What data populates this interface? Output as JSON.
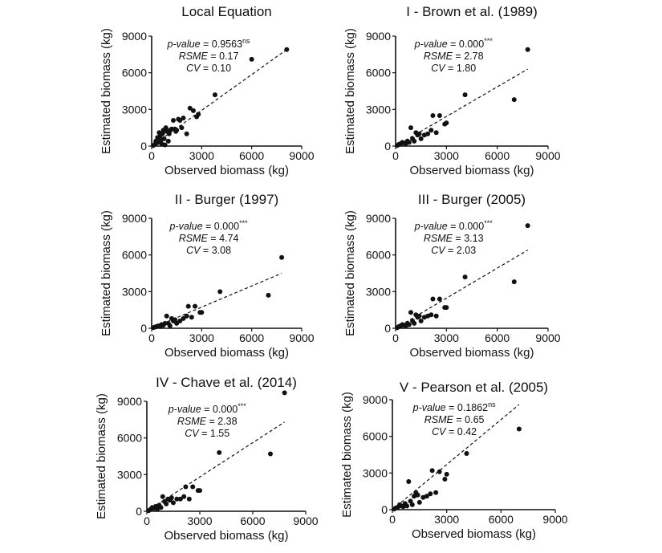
{
  "chart_data": [
    {
      "type": "scatter",
      "title": "Local Equation",
      "xlabel": "Observed biomass (kg)",
      "ylabel": "Estimated biomass (kg)",
      "xlim": [
        0,
        9000
      ],
      "ylim": [
        0,
        9000
      ],
      "xticks": [
        "0",
        "3000",
        "6000",
        "9000"
      ],
      "yticks": [
        "0",
        "3000",
        "6000",
        "9000"
      ],
      "stats": {
        "pvalue_label": "p-value",
        "pvalue": "0.9563",
        "pvalue_sig": "ns",
        "rsme_label": "RSME",
        "rsme": "0.17",
        "cv_label": "CV",
        "cv": "0.10"
      },
      "fit_line": [
        [
          0,
          0
        ],
        [
          8100,
          7900
        ]
      ],
      "x": [
        100,
        200,
        250,
        300,
        350,
        400,
        450,
        500,
        550,
        600,
        650,
        700,
        750,
        800,
        850,
        900,
        1000,
        1050,
        1100,
        1200,
        1300,
        1400,
        1450,
        1500,
        1600,
        1700,
        1800,
        1900,
        2100,
        2300,
        2500,
        2700,
        2800,
        3800,
        6000,
        8100
      ],
      "y": [
        50,
        150,
        400,
        250,
        700,
        300,
        1100,
        800,
        500,
        200,
        1000,
        1300,
        600,
        100,
        1500,
        1200,
        400,
        1000,
        1300,
        1400,
        2100,
        1400,
        1200,
        1300,
        2200,
        2100,
        1500,
        2300,
        1000,
        3100,
        2900,
        2400,
        2600,
        4200,
        7100,
        7900
      ]
    },
    {
      "type": "scatter",
      "title": "I - Brown et al. (1989)",
      "xlabel": "Observed biomass (kg)",
      "ylabel": "Estimated biomass (kg)",
      "xlim": [
        0,
        9000
      ],
      "ylim": [
        0,
        9000
      ],
      "xticks": [
        "0",
        "3000",
        "6000",
        "9000"
      ],
      "yticks": [
        "0",
        "3000",
        "6000",
        "9000"
      ],
      "stats": {
        "pvalue_label": "p-value",
        "pvalue": "0.000",
        "pvalue_sig": "***",
        "rsme_label": "RSME",
        "rsme": "2.78",
        "cv_label": "CV",
        "cv": "1.80"
      },
      "fit_line": [
        [
          0,
          0
        ],
        [
          7800,
          6300
        ]
      ],
      "x": [
        100,
        200,
        300,
        400,
        500,
        600,
        700,
        800,
        900,
        1000,
        1100,
        1200,
        1300,
        1400,
        1500,
        1700,
        1900,
        2100,
        2200,
        2400,
        2600,
        2900,
        3000,
        4100,
        7000,
        7800
      ],
      "y": [
        50,
        150,
        200,
        300,
        250,
        200,
        400,
        300,
        1500,
        600,
        400,
        1100,
        900,
        1000,
        600,
        900,
        1000,
        1300,
        2500,
        1100,
        2500,
        1800,
        1900,
        4200,
        3800,
        7900
      ]
    },
    {
      "type": "scatter",
      "title": "II - Burger (1997)",
      "xlabel": "Observed biomass (kg)",
      "ylabel": "Estimated biomass (kg)",
      "xlim": [
        0,
        9000
      ],
      "ylim": [
        0,
        9000
      ],
      "xticks": [
        "0",
        "3000",
        "6000",
        "9000"
      ],
      "yticks": [
        "0",
        "3000",
        "6000",
        "9000"
      ],
      "stats": {
        "pvalue_label": "p-value",
        "pvalue": "0.000",
        "pvalue_sig": "***",
        "rsme_label": "RSME",
        "rsme": "4.74",
        "cv_label": "CV",
        "cv": "3.08"
      },
      "fit_line": [
        [
          0,
          0
        ],
        [
          7800,
          4500
        ]
      ],
      "x": [
        100,
        200,
        300,
        400,
        500,
        600,
        700,
        800,
        900,
        1000,
        1100,
        1200,
        1300,
        1400,
        1500,
        1700,
        1900,
        2100,
        2200,
        2400,
        2600,
        2900,
        3000,
        4100,
        7000,
        7800
      ],
      "y": [
        50,
        100,
        150,
        200,
        150,
        300,
        250,
        400,
        1000,
        400,
        200,
        800,
        600,
        700,
        400,
        600,
        800,
        1000,
        1800,
        900,
        1800,
        1300,
        1300,
        3000,
        2700,
        5800
      ]
    },
    {
      "type": "scatter",
      "title": "III - Burger (2005)",
      "xlabel": "Observed biomass (kg)",
      "ylabel": "Estimated biomass (kg)",
      "xlim": [
        0,
        9000
      ],
      "ylim": [
        0,
        9000
      ],
      "xticks": [
        "0",
        "3000",
        "6000",
        "9000"
      ],
      "yticks": [
        "0",
        "3000",
        "6000",
        "9000"
      ],
      "stats": {
        "pvalue_label": "p-value",
        "pvalue": "0.000",
        "pvalue_sig": "***",
        "rsme_label": "RSME",
        "rsme": "3.13",
        "cv_label": "CV",
        "cv": "2.03"
      },
      "fit_line": [
        [
          0,
          0
        ],
        [
          7800,
          6400
        ]
      ],
      "x": [
        100,
        200,
        300,
        400,
        500,
        600,
        700,
        800,
        900,
        1000,
        1100,
        1200,
        1300,
        1400,
        1500,
        1700,
        1900,
        2100,
        2200,
        2400,
        2600,
        2900,
        3000,
        4100,
        7000,
        7800
      ],
      "y": [
        50,
        150,
        200,
        300,
        250,
        200,
        400,
        300,
        1300,
        600,
        400,
        1100,
        900,
        1000,
        600,
        900,
        1000,
        1100,
        2400,
        1000,
        2400,
        1700,
        1700,
        4200,
        3800,
        8400
      ]
    },
    {
      "type": "scatter",
      "title": "IV - Chave et al. (2014)",
      "xlabel": "Observed biomass (kg)",
      "ylabel": "Estimated biomass (kg)",
      "xlim": [
        0,
        9000
      ],
      "ylim": [
        0,
        9000
      ],
      "xticks": [
        "0",
        "3000",
        "6000",
        "9000"
      ],
      "yticks": [
        "0",
        "3000",
        "6000",
        "9000"
      ],
      "stats": {
        "pvalue_label": "p-value",
        "pvalue": "0.000",
        "pvalue_sig": "***",
        "rsme_label": "RSME",
        "rsme": "2.38",
        "cv_label": "CV",
        "cv": "1.55"
      },
      "fit_line": [
        [
          0,
          0
        ],
        [
          7800,
          7300
        ]
      ],
      "x": [
        100,
        200,
        300,
        400,
        500,
        600,
        700,
        800,
        900,
        1000,
        1100,
        1200,
        1300,
        1400,
        1500,
        1700,
        1900,
        2100,
        2200,
        2400,
        2600,
        2900,
        3000,
        4100,
        7000,
        7800
      ],
      "y": [
        50,
        150,
        300,
        250,
        400,
        200,
        500,
        300,
        1200,
        800,
        600,
        1000,
        900,
        1100,
        700,
        1000,
        1000,
        1200,
        2000,
        1000,
        2000,
        1700,
        1700,
        4800,
        4700,
        9700
      ]
    },
    {
      "type": "scatter",
      "title": "V - Pearson et al. (2005)",
      "xlabel": "Observed biomass (kg)",
      "ylabel": "Estimated biomass (kg)",
      "xlim": [
        0,
        9000
      ],
      "ylim": [
        0,
        9000
      ],
      "xticks": [
        "0",
        "3000",
        "6000",
        "9000"
      ],
      "yticks": [
        "0",
        "3000",
        "6000",
        "9000"
      ],
      "stats": {
        "pvalue_label": "p-value",
        "pvalue": "0.1862",
        "pvalue_sig": "ns",
        "rsme_label": "RSME",
        "rsme": "0.65",
        "cv_label": "CV",
        "cv": "0.42"
      },
      "fit_line": [
        [
          0,
          0
        ],
        [
          7000,
          8600
        ]
      ],
      "x": [
        100,
        200,
        300,
        400,
        500,
        600,
        700,
        800,
        900,
        1000,
        1100,
        1200,
        1300,
        1400,
        1500,
        1700,
        1900,
        2100,
        2200,
        2400,
        2600,
        2900,
        3000,
        4100,
        7000
      ],
      "y": [
        50,
        150,
        200,
        400,
        300,
        250,
        500,
        300,
        2300,
        700,
        400,
        1100,
        1400,
        1200,
        600,
        1000,
        1100,
        1300,
        3200,
        1400,
        3100,
        2500,
        2900,
        4600,
        6600
      ]
    }
  ]
}
